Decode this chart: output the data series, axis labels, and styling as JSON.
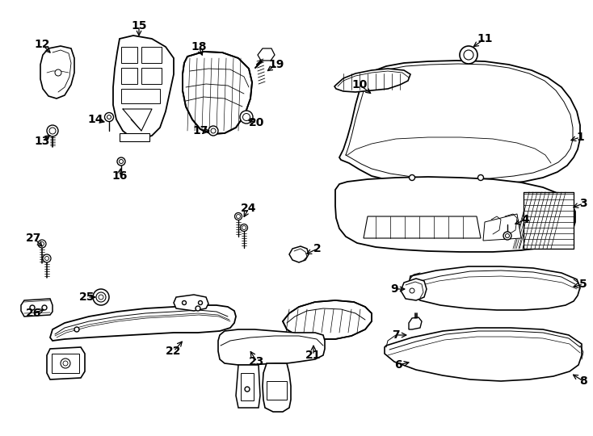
{
  "background": "#ffffff",
  "line_color": "#000000",
  "fig_width": 7.34,
  "fig_height": 5.4,
  "dpi": 100,
  "leaders": [
    [
      "1",
      718,
      170,
      703,
      175
    ],
    [
      "2",
      393,
      308,
      376,
      316
    ],
    [
      "3",
      722,
      252,
      706,
      258
    ],
    [
      "4",
      650,
      272,
      634,
      279
    ],
    [
      "5",
      722,
      352,
      706,
      356
    ],
    [
      "6",
      493,
      452,
      510,
      448
    ],
    [
      "7",
      490,
      415,
      507,
      415
    ],
    [
      "8",
      722,
      472,
      706,
      462
    ],
    [
      "9",
      488,
      358,
      505,
      358
    ],
    [
      "10",
      445,
      105,
      462,
      118
    ],
    [
      "11",
      600,
      48,
      583,
      60
    ],
    [
      "12",
      52,
      55,
      65,
      68
    ],
    [
      "13",
      52,
      175,
      65,
      165
    ],
    [
      "14",
      118,
      148,
      133,
      152
    ],
    [
      "15",
      172,
      32,
      172,
      48
    ],
    [
      "16",
      148,
      218,
      150,
      205
    ],
    [
      "17",
      248,
      162,
      263,
      162
    ],
    [
      "18",
      246,
      58,
      252,
      72
    ],
    [
      "19",
      342,
      80,
      328,
      90
    ],
    [
      "20",
      318,
      152,
      304,
      148
    ],
    [
      "21",
      388,
      440,
      388,
      424
    ],
    [
      "22",
      215,
      435,
      228,
      420
    ],
    [
      "23",
      318,
      448,
      308,
      432
    ],
    [
      "24",
      308,
      258,
      300,
      272
    ],
    [
      "25",
      108,
      368,
      122,
      368
    ],
    [
      "26",
      42,
      388,
      58,
      382
    ],
    [
      "27",
      42,
      295,
      55,
      308
    ]
  ]
}
